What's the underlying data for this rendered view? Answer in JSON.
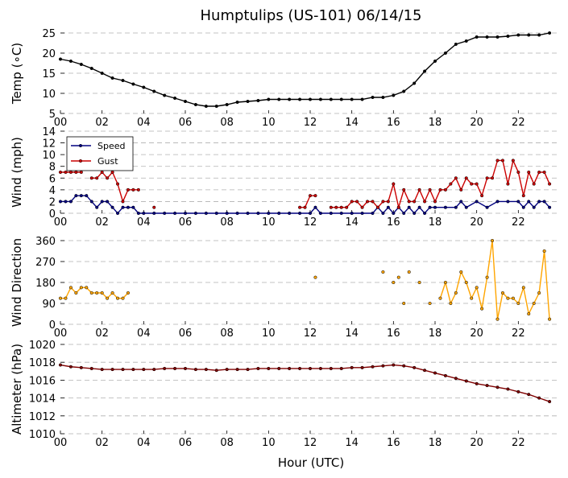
{
  "title": "Humptulips (US-101) 06/14/15",
  "xlabel": "Hour (UTC)",
  "x_ticks": [
    "00",
    "02",
    "04",
    "06",
    "08",
    "10",
    "12",
    "14",
    "16",
    "18",
    "20",
    "22"
  ],
  "chart_data": [
    {
      "type": "line",
      "ylabel": "Temp ($^\\circ$C)",
      "ylabel_display": "Temp (∘C)",
      "ylim": [
        5,
        25
      ],
      "yticks": [
        5,
        10,
        15,
        20,
        25
      ],
      "xlim_hours": [
        0,
        24
      ],
      "grid": "horizontal dashed",
      "series": [
        {
          "color": "#000000",
          "x": [
            0,
            0.5,
            1,
            1.5,
            2,
            2.5,
            3,
            3.5,
            4,
            4.5,
            5,
            5.5,
            6,
            6.5,
            7,
            7.5,
            8,
            8.5,
            9,
            9.5,
            10,
            10.5,
            11,
            11.5,
            12,
            12.5,
            13,
            13.5,
            14,
            14.5,
            15,
            15.5,
            16,
            16.5,
            17,
            17.5,
            18,
            18.5,
            19,
            19.5,
            20,
            20.5,
            21,
            21.5,
            22,
            22.5,
            23,
            23.5
          ],
          "y": [
            18.5,
            18,
            17.2,
            16.2,
            15,
            13.8,
            13.2,
            12.3,
            11.5,
            10.5,
            9.5,
            8.8,
            8,
            7.2,
            6.8,
            6.8,
            7.2,
            7.8,
            8,
            8.2,
            8.5,
            8.5,
            8.5,
            8.5,
            8.5,
            8.5,
            8.5,
            8.5,
            8.5,
            8.5,
            9,
            9,
            9.5,
            10.5,
            12.5,
            15.5,
            18,
            20,
            22.2,
            23,
            24,
            24,
            24,
            24.2,
            24.5,
            24.5,
            24.5,
            25
          ]
        }
      ]
    },
    {
      "type": "line",
      "ylabel": "Wind (mph)",
      "ylim": [
        0,
        14
      ],
      "yticks": [
        0,
        2,
        4,
        6,
        8,
        10,
        12,
        14
      ],
      "legend": {
        "position": "upper-left"
      },
      "series": [
        {
          "name": "Speed",
          "color": "#000080",
          "segments": [
            {
              "x": [
                0,
                0.25,
                0.5,
                0.75,
                1,
                1.25,
                1.5,
                1.75,
                2,
                2.25,
                2.5,
                2.75,
                3,
                3.25,
                3.5,
                3.75,
                4,
                4.5,
                5,
                5.5,
                6,
                6.5,
                7,
                7.5,
                8,
                8.5,
                9,
                9.5,
                10,
                10.5,
                11,
                11.5,
                12,
                12.25,
                12.5,
                13,
                13.5,
                14,
                14.5,
                15,
                15.25,
                15.5,
                15.75,
                16,
                16.25,
                16.5,
                16.75,
                17,
                17.25,
                17.5,
                17.75,
                18,
                18.5,
                19,
                19.25,
                19.5,
                20,
                20.5,
                21,
                21.5,
                22,
                22.25,
                22.5,
                22.75,
                23,
                23.25,
                23.5
              ],
              "y": [
                2,
                2,
                2,
                3,
                3,
                3,
                2,
                1,
                2,
                2,
                1,
                0,
                1,
                1,
                1,
                0,
                0,
                0,
                0,
                0,
                0,
                0,
                0,
                0,
                0,
                0,
                0,
                0,
                0,
                0,
                0,
                0,
                0,
                1,
                0,
                0,
                0,
                0,
                0,
                0,
                1,
                0,
                1,
                0,
                1,
                0,
                1,
                0,
                1,
                0,
                1,
                1,
                1,
                1,
                2,
                1,
                2,
                1,
                2,
                2,
                2,
                1,
                2,
                1,
                2,
                2,
                1
              ]
            }
          ]
        },
        {
          "name": "Gust",
          "color": "#cc0000",
          "segments": [
            {
              "x": [
                0,
                0.25,
                0.5,
                0.75,
                1
              ],
              "y": [
                7,
                7,
                7,
                7,
                7
              ]
            },
            {
              "x": [
                1.5,
                1.75,
                2,
                2.25,
                2.5,
                2.75,
                3,
                3.25,
                3.5,
                3.75
              ],
              "y": [
                6,
                6,
                7,
                6,
                7,
                5,
                2,
                4,
                4,
                4
              ]
            },
            {
              "x": [
                4.5
              ],
              "y": [
                1
              ]
            },
            {
              "x": [
                11.5,
                11.75,
                12,
                12.25
              ],
              "y": [
                1,
                1,
                3,
                3
              ]
            },
            {
              "x": [
                13,
                13.25,
                13.5,
                13.75,
                14,
                14.25,
                14.5,
                14.75,
                15,
                15.25,
                15.5,
                15.75,
                16,
                16.25,
                16.5,
                16.75,
                17,
                17.25,
                17.5,
                17.75,
                18,
                18.25,
                18.5,
                18.75,
                19,
                19.25,
                19.5,
                19.75,
                20,
                20.25,
                20.5,
                20.75,
                21,
                21.25,
                21.5,
                21.75,
                22,
                22.25,
                22.5,
                22.75,
                23,
                23.25,
                23.5
              ],
              "y": [
                1,
                1,
                1,
                1,
                2,
                2,
                1,
                2,
                2,
                1,
                2,
                2,
                5,
                1,
                4,
                2,
                2,
                4,
                2,
                4,
                2,
                4,
                4,
                5,
                6,
                4,
                6,
                5,
                5,
                3,
                6,
                6,
                9,
                9,
                5,
                9,
                7,
                3,
                7,
                5,
                7,
                7,
                5
              ]
            }
          ]
        }
      ]
    },
    {
      "type": "line",
      "ylabel": "Wind Direction",
      "ylim": [
        0,
        360
      ],
      "yticks": [
        0,
        90,
        180,
        270,
        360
      ],
      "series": [
        {
          "color": "#ffa500",
          "segments": [
            {
              "x": [
                0,
                0.25,
                0.5,
                0.75,
                1,
                1.25,
                1.5,
                1.75,
                2,
                2.25,
                2.5,
                2.75,
                3,
                3.25
              ],
              "y": [
                112,
                112,
                158,
                135,
                158,
                158,
                135,
                135,
                135,
                112,
                135,
                112,
                112,
                135
              ]
            },
            {
              "x": [
                12.25
              ],
              "y": [
                202
              ]
            },
            {
              "x": [
                15.5
              ],
              "y": [
                225
              ]
            },
            {
              "x": [
                16
              ],
              "y": [
                180
              ]
            },
            {
              "x": [
                16.25
              ],
              "y": [
                202
              ]
            },
            {
              "x": [
                16.5
              ],
              "y": [
                90
              ]
            },
            {
              "x": [
                16.75
              ],
              "y": [
                225
              ]
            },
            {
              "x": [
                17.25
              ],
              "y": [
                180
              ]
            },
            {
              "x": [
                17.75
              ],
              "y": [
                90
              ]
            },
            {
              "x": [
                18.25,
                18.5,
                18.75,
                19,
                19.25,
                19.5,
                19.75,
                20,
                20.25,
                20.5,
                20.75,
                21,
                21.25,
                21.5,
                21.75,
                22,
                22.25,
                22.5,
                22.75,
                23,
                23.25,
                23.5
              ],
              "y": [
                112,
                180,
                90,
                135,
                225,
                180,
                112,
                158,
                67,
                202,
                360,
                22,
                135,
                112,
                112,
                90,
                158,
                45,
                90,
                135,
                315,
                22
              ]
            }
          ]
        }
      ]
    },
    {
      "type": "line",
      "ylabel": "Altimeter (hPa)",
      "ylim": [
        1010,
        1020
      ],
      "yticks": [
        1010,
        1012,
        1014,
        1016,
        1018,
        1020
      ],
      "series": [
        {
          "color": "#800000",
          "x": [
            0,
            0.5,
            1,
            1.5,
            2,
            2.5,
            3,
            3.5,
            4,
            4.5,
            5,
            5.5,
            6,
            6.5,
            7,
            7.5,
            8,
            8.5,
            9,
            9.5,
            10,
            10.5,
            11,
            11.5,
            12,
            12.5,
            13,
            13.5,
            14,
            14.5,
            15,
            15.5,
            16,
            16.5,
            17,
            17.5,
            18,
            18.5,
            19,
            19.5,
            20,
            20.5,
            21,
            21.5,
            22,
            22.5,
            23,
            23.5
          ],
          "y": [
            1017.7,
            1017.5,
            1017.4,
            1017.3,
            1017.2,
            1017.2,
            1017.2,
            1017.2,
            1017.2,
            1017.2,
            1017.3,
            1017.3,
            1017.3,
            1017.2,
            1017.2,
            1017.1,
            1017.2,
            1017.2,
            1017.2,
            1017.3,
            1017.3,
            1017.3,
            1017.3,
            1017.3,
            1017.3,
            1017.3,
            1017.3,
            1017.3,
            1017.4,
            1017.4,
            1017.5,
            1017.6,
            1017.7,
            1017.6,
            1017.4,
            1017.1,
            1016.8,
            1016.5,
            1016.2,
            1015.9,
            1015.6,
            1015.4,
            1015.2,
            1015,
            1014.7,
            1014.4,
            1014,
            1013.6
          ]
        }
      ]
    }
  ]
}
